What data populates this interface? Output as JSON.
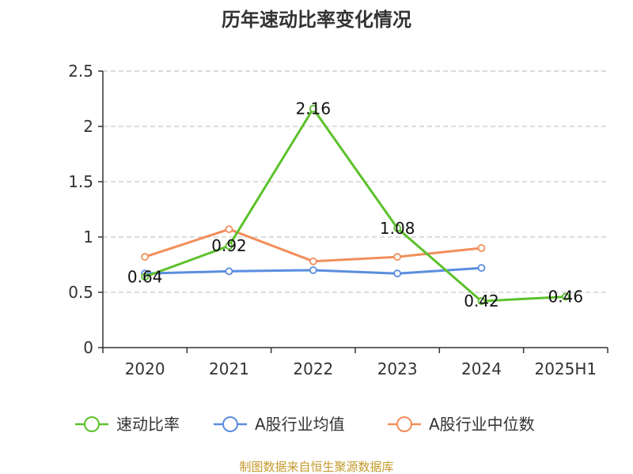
{
  "colors": {
    "series_speed": "#5CC12A",
    "series_avg": "#5B8DE0",
    "series_median": "#F28E5B",
    "axis": "#333333",
    "grid": "#C8C8C8",
    "source": "#C49A2C"
  },
  "chart_data": {
    "type": "line",
    "title": "历年速动比率变化情况",
    "categories": [
      "2020",
      "2021",
      "2022",
      "2023",
      "2024",
      "2025H1"
    ],
    "ylim": [
      0,
      2.5
    ],
    "yticks": [
      "0",
      "0.5",
      "1",
      "1.5",
      "2",
      "2.5"
    ],
    "grid": true,
    "legend_position": "bottom",
    "series": [
      {
        "name": "速动比率",
        "color_key": "series_speed",
        "values": [
          0.64,
          0.92,
          2.16,
          1.08,
          0.42,
          0.46
        ],
        "labels": [
          "0.64",
          "0.92",
          "2.16",
          "1.08",
          "0.42",
          "0.46"
        ]
      },
      {
        "name": "A股行业均值",
        "color_key": "series_avg",
        "values": [
          0.67,
          0.69,
          0.7,
          0.67,
          0.72,
          null
        ],
        "labels": null
      },
      {
        "name": "A股行业中位数",
        "color_key": "series_median",
        "values": [
          0.82,
          1.07,
          0.78,
          0.82,
          0.9,
          null
        ],
        "labels": null
      }
    ]
  },
  "source_text": "制图数据来自恒生聚源数据库"
}
